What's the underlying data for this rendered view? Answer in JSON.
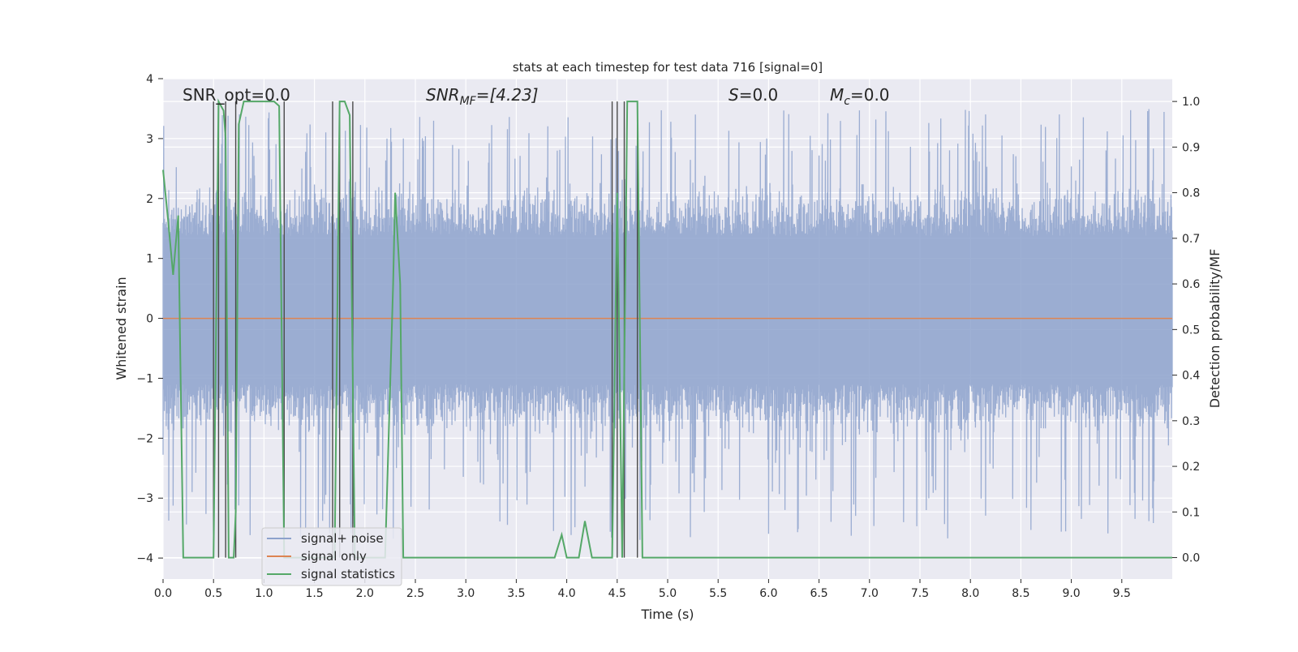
{
  "chart_data": {
    "type": "line",
    "title": "stats at each timestep for test data 716 [signal=0]",
    "xlabel": "Time (s)",
    "ylabel_left": "Whitened strain",
    "ylabel_right": "Detection probability/MF",
    "xlim": [
      0.0,
      10.0
    ],
    "ylim_left": [
      -4.35,
      4.0
    ],
    "ylim_right": [
      -0.047,
      1.05
    ],
    "x_ticks": [
      "0.0",
      "0.5",
      "1.0",
      "1.5",
      "2.0",
      "2.5",
      "3.0",
      "3.5",
      "4.0",
      "4.5",
      "5.0",
      "5.5",
      "6.0",
      "6.5",
      "7.0",
      "7.5",
      "8.0",
      "8.5",
      "9.0",
      "9.5"
    ],
    "y_ticks_left": [
      "4",
      "3",
      "2",
      "1",
      "0",
      "−1",
      "−2",
      "−3",
      "−4"
    ],
    "y_ticks_right": [
      "1.0",
      "0.9",
      "0.8",
      "0.7",
      "0.6",
      "0.5",
      "0.4",
      "0.3",
      "0.2",
      "0.1",
      "0.0"
    ],
    "grid": true,
    "legend_position": "lower-left",
    "annotations": {
      "snr_opt": "SNR_opt=0.0",
      "snr_mf_label": "SNR",
      "snr_mf_sub": "MF",
      "snr_mf_value": "=[4.23]",
      "s_label": "S",
      "s_value": "=0.0",
      "mc_label": "M",
      "mc_sub": "c",
      "mc_value": "=0.0"
    },
    "series": [
      {
        "name": "signal+ noise",
        "color": "#8da2cc",
        "axis": "left",
        "typical_range": [
          -2.0,
          2.5
        ],
        "extreme_range": [
          -3.7,
          3.5
        ]
      },
      {
        "name": "signal only",
        "color": "#dd8452",
        "axis": "left",
        "values_constant": 0.0
      },
      {
        "name": "signal statistics",
        "color": "#55a868",
        "axis": "right",
        "x": [
          0.0,
          0.05,
          0.1,
          0.15,
          0.18,
          0.2,
          0.5,
          0.55,
          0.6,
          0.62,
          0.65,
          0.7,
          0.72,
          0.75,
          0.8,
          0.85,
          1.1,
          1.15,
          1.2,
          1.25,
          1.3,
          1.6,
          1.65,
          1.7,
          1.75,
          1.8,
          1.85,
          1.9,
          1.95,
          2.2,
          2.28,
          2.3,
          2.35,
          2.38,
          2.42,
          3.88,
          3.95,
          4.0,
          4.05,
          4.12,
          4.18,
          4.25,
          4.4,
          4.45,
          4.5,
          4.55,
          4.6,
          4.65,
          4.7,
          4.75,
          10.0
        ],
        "y": [
          0.85,
          0.74,
          0.62,
          0.75,
          0.3,
          0.0,
          0.0,
          1.0,
          0.98,
          0.92,
          0.0,
          0.0,
          0.1,
          0.95,
          1.0,
          1.0,
          1.0,
          0.99,
          0.0,
          0.0,
          0.0,
          0.0,
          0.0,
          0.0,
          1.0,
          1.0,
          0.97,
          0.0,
          0.0,
          0.0,
          0.6,
          0.8,
          0.6,
          0.0,
          0.0,
          0.0,
          0.05,
          0.0,
          0.0,
          0.0,
          0.08,
          0.0,
          0.0,
          0.0,
          0.8,
          0.0,
          1.0,
          1.0,
          1.0,
          0.0,
          0.0
        ]
      }
    ],
    "threshold_markers": {
      "color": "#4a4a4a",
      "axis": "right",
      "x": [
        0.5,
        0.55,
        0.62,
        0.72,
        1.2,
        1.68,
        1.75,
        1.88,
        4.45,
        4.5,
        4.57,
        4.7
      ],
      "y_top": [
        1.0,
        1.0,
        1.0,
        1.0,
        1.0,
        1.0,
        1.0,
        1.0,
        1.0,
        1.0,
        1.0,
        1.0
      ]
    }
  }
}
